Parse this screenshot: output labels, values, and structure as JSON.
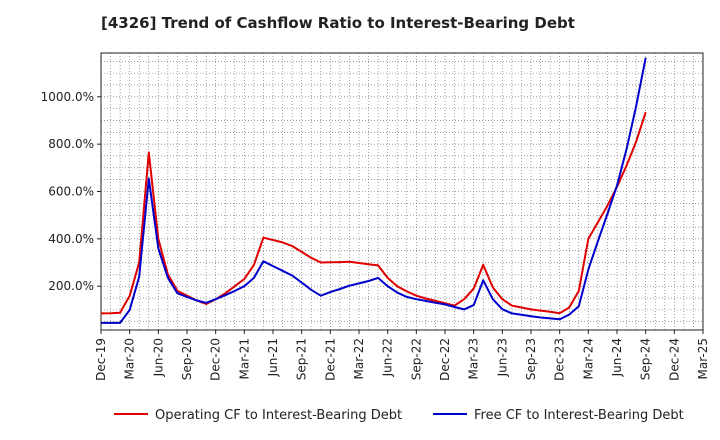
{
  "chart_data": {
    "type": "line",
    "title": "[4326]  Trend of Cashflow Ratio to Interest-Bearing Debt",
    "xlabel": "",
    "ylabel": "",
    "grid": true,
    "legend_position": "bottom",
    "x_tick_labels": [
      "Dec-19",
      "Mar-20",
      "Jun-20",
      "Sep-20",
      "Dec-20",
      "Mar-21",
      "Jun-21",
      "Sep-21",
      "Dec-21",
      "Mar-22",
      "Jun-22",
      "Sep-22",
      "Dec-22",
      "Mar-23",
      "Jun-23",
      "Sep-23",
      "Dec-23",
      "Mar-24",
      "Jun-24",
      "Sep-24",
      "Dec-24",
      "Mar-25"
    ],
    "y_ticks": [
      200,
      400,
      600,
      800,
      1000
    ],
    "y_tick_labels": [
      "200.0%",
      "400.0%",
      "600.0%",
      "800.0%",
      "1000.0%"
    ],
    "ylim": [
      15,
      1185
    ],
    "series": [
      {
        "name": "Operating CF to Interest-Bearing Debt",
        "color": "#e00000",
        "points": [
          [
            0,
            85
          ],
          [
            1,
            86
          ],
          [
            2,
            88
          ],
          [
            3,
            160
          ],
          [
            4,
            300
          ],
          [
            5,
            765
          ],
          [
            6,
            400
          ],
          [
            7,
            250
          ],
          [
            8,
            180
          ],
          [
            9,
            160
          ],
          [
            10,
            140
          ],
          [
            11,
            125
          ],
          [
            12,
            145
          ],
          [
            13,
            170
          ],
          [
            14,
            200
          ],
          [
            15,
            230
          ],
          [
            16,
            290
          ],
          [
            17,
            405
          ],
          [
            18,
            395
          ],
          [
            19,
            385
          ],
          [
            20,
            370
          ],
          [
            21,
            345
          ],
          [
            22,
            320
          ],
          [
            23,
            300
          ],
          [
            24,
            301
          ],
          [
            25,
            302
          ],
          [
            26,
            303
          ],
          [
            27,
            298
          ],
          [
            28,
            293
          ],
          [
            29,
            288
          ],
          [
            30,
            235
          ],
          [
            31,
            200
          ],
          [
            32,
            178
          ],
          [
            33,
            160
          ],
          [
            34,
            148
          ],
          [
            35,
            138
          ],
          [
            36,
            128
          ],
          [
            37,
            118
          ],
          [
            38,
            145
          ],
          [
            39,
            190
          ],
          [
            40,
            290
          ],
          [
            41,
            195
          ],
          [
            42,
            145
          ],
          [
            43,
            118
          ],
          [
            44,
            110
          ],
          [
            45,
            102
          ],
          [
            46,
            97
          ],
          [
            47,
            92
          ],
          [
            48,
            86
          ],
          [
            49,
            110
          ],
          [
            50,
            180
          ],
          [
            51,
            400
          ],
          [
            52,
            470
          ],
          [
            53,
            540
          ],
          [
            54,
            620
          ],
          [
            55,
            710
          ],
          [
            56,
            810
          ],
          [
            57,
            935
          ]
        ]
      },
      {
        "name": "Free CF to Interest-Bearing Debt",
        "color": "#0000cc",
        "points": [
          [
            0,
            45
          ],
          [
            1,
            45
          ],
          [
            2,
            45
          ],
          [
            3,
            100
          ],
          [
            4,
            240
          ],
          [
            5,
            655
          ],
          [
            6,
            360
          ],
          [
            7,
            235
          ],
          [
            8,
            170
          ],
          [
            9,
            155
          ],
          [
            10,
            140
          ],
          [
            11,
            130
          ],
          [
            12,
            145
          ],
          [
            13,
            162
          ],
          [
            14,
            180
          ],
          [
            15,
            200
          ],
          [
            16,
            235
          ],
          [
            17,
            305
          ],
          [
            18,
            285
          ],
          [
            19,
            265
          ],
          [
            20,
            245
          ],
          [
            21,
            215
          ],
          [
            22,
            185
          ],
          [
            23,
            160
          ],
          [
            24,
            175
          ],
          [
            25,
            188
          ],
          [
            26,
            202
          ],
          [
            27,
            212
          ],
          [
            28,
            222
          ],
          [
            29,
            235
          ],
          [
            30,
            200
          ],
          [
            31,
            173
          ],
          [
            32,
            155
          ],
          [
            33,
            145
          ],
          [
            34,
            138
          ],
          [
            35,
            130
          ],
          [
            36,
            123
          ],
          [
            37,
            112
          ],
          [
            38,
            102
          ],
          [
            39,
            120
          ],
          [
            40,
            225
          ],
          [
            41,
            145
          ],
          [
            42,
            103
          ],
          [
            43,
            85
          ],
          [
            44,
            79
          ],
          [
            45,
            73
          ],
          [
            46,
            68
          ],
          [
            47,
            64
          ],
          [
            48,
            60
          ],
          [
            49,
            80
          ],
          [
            50,
            115
          ],
          [
            51,
            270
          ],
          [
            52,
            390
          ],
          [
            53,
            505
          ],
          [
            54,
            625
          ],
          [
            55,
            780
          ],
          [
            56,
            960
          ],
          [
            57,
            1165
          ]
        ]
      }
    ]
  }
}
